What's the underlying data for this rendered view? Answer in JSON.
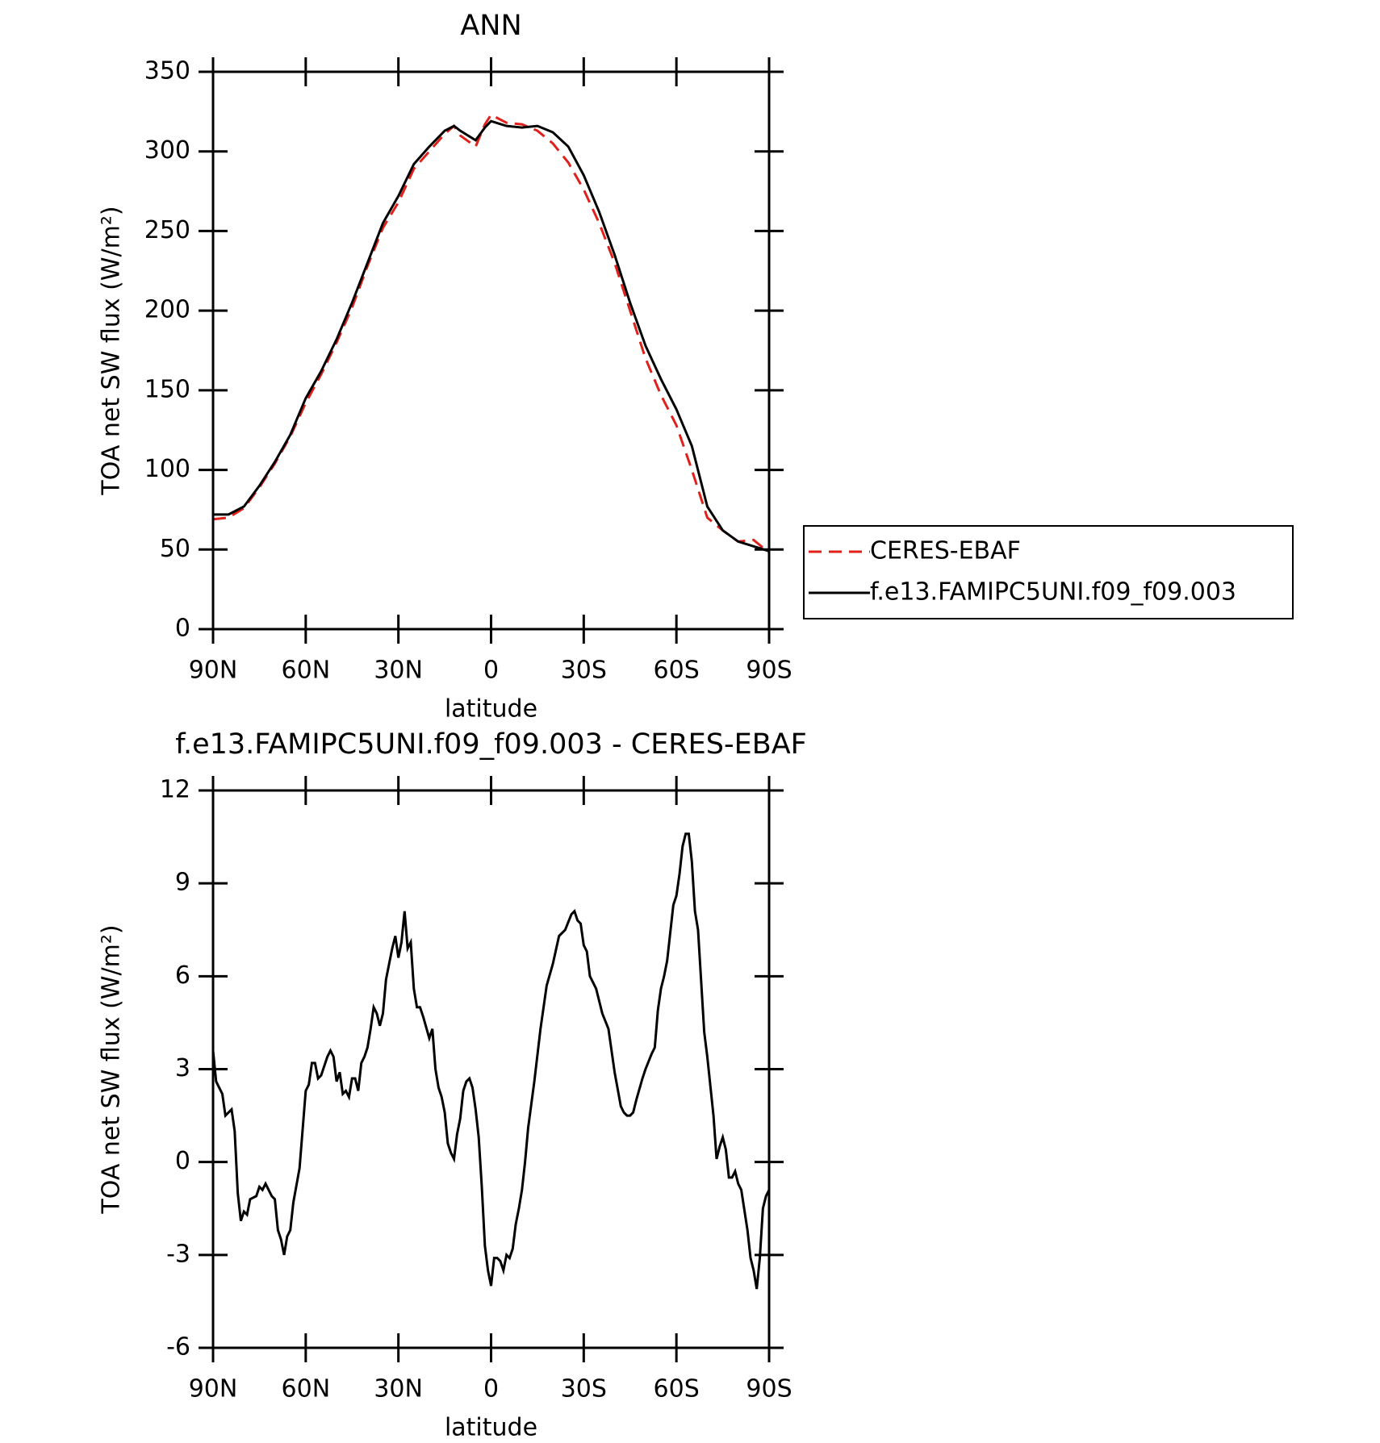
{
  "chart_data": [
    {
      "type": "line",
      "title": "ANN",
      "x_label": "latitude",
      "y_label": "TOA net SW flux (W/m²)",
      "x": [
        90,
        85,
        80,
        75,
        70,
        65,
        60,
        55,
        50,
        45,
        40,
        35,
        30,
        25,
        20,
        15,
        12,
        10,
        5,
        2,
        0,
        -5,
        -10,
        -15,
        -20,
        -25,
        -30,
        -35,
        -40,
        -45,
        -50,
        -55,
        -60,
        -65,
        -70,
        -75,
        -80,
        -85,
        -90
      ],
      "series": [
        {
          "name": "CERES-EBAF",
          "color": "#e0201b",
          "dash": true,
          "values": [
            69,
            70,
            76,
            89,
            104,
            121,
            142,
            160,
            180,
            202,
            228,
            252,
            268,
            289,
            300,
            311,
            316,
            310,
            303,
            317,
            323,
            318,
            317,
            313,
            305,
            293,
            276,
            255,
            230,
            200,
            170,
            147,
            128,
            100,
            70,
            62,
            55,
            56,
            48
          ]
        },
        {
          "name": "f.e13.FAMIPC5UNI.f09_f09.003",
          "color": "#000000",
          "dash": false,
          "values": [
            72,
            72,
            77,
            90,
            105,
            122,
            145,
            162,
            182,
            205,
            230,
            255,
            272,
            292,
            303,
            313,
            316,
            313,
            307,
            315,
            319,
            316,
            315,
            316,
            312,
            303,
            285,
            262,
            235,
            205,
            178,
            157,
            138,
            115,
            77,
            62,
            55,
            52,
            49
          ]
        }
      ],
      "xlim": [
        90,
        -90
      ],
      "xticks": [
        {
          "value": 90,
          "label": "90N"
        },
        {
          "value": 60,
          "label": "60N"
        },
        {
          "value": 30,
          "label": "30N"
        },
        0,
        {
          "value": -30,
          "label": "30S"
        },
        {
          "value": -60,
          "label": "60S"
        },
        {
          "value": -90,
          "label": "90S"
        }
      ],
      "ylim": [
        0,
        350
      ],
      "yticks": [
        0,
        50,
        100,
        150,
        200,
        250,
        300,
        350
      ],
      "legend": "right"
    },
    {
      "type": "line",
      "title": "f.e13.FAMIPC5UNI.f09_f09.003 - CERES-EBAF",
      "x_label": "latitude",
      "y_label": "TOA net SW flux (W/m²)",
      "x": [
        90,
        89,
        87,
        86,
        84,
        83,
        82,
        81,
        80,
        79,
        78,
        76,
        75,
        74,
        73,
        71,
        70,
        69,
        68,
        67,
        66,
        65,
        64,
        62,
        60,
        59,
        58,
        57,
        56,
        55,
        53,
        52,
        51,
        50,
        49,
        48,
        47,
        46,
        45,
        44,
        43,
        42,
        41,
        40,
        39,
        38,
        37,
        36,
        35,
        34,
        33,
        32,
        31,
        30,
        29,
        28,
        27,
        26,
        25,
        24,
        23,
        22,
        20,
        19,
        18,
        17,
        16,
        15,
        14,
        13,
        12,
        11,
        10,
        9,
        8,
        7,
        6,
        5,
        4,
        3,
        2,
        1,
        0,
        -1,
        -2,
        -3,
        -4,
        -5,
        -6,
        -7,
        -8,
        -9,
        -10,
        -11,
        -12,
        -14,
        -16,
        -18,
        -20,
        -22,
        -24,
        -26,
        -27,
        -28,
        -29,
        -30,
        -31,
        -32,
        -34,
        -36,
        -38,
        -40,
        -42,
        -43,
        -44,
        -45,
        -46,
        -47,
        -49,
        -50,
        -52,
        -53,
        -54,
        -55,
        -56,
        -57,
        -59,
        -60,
        -61,
        -62,
        -63,
        -64,
        -65,
        -66,
        -67,
        -69,
        -70,
        -72,
        -73,
        -74,
        -75,
        -76,
        -77,
        -78,
        -79,
        -80,
        -81,
        -83,
        -84,
        -85,
        -86,
        -87,
        -88,
        -89,
        -90
      ],
      "series": [
        {
          "color": "#000000",
          "dash": false,
          "values": [
            3.6,
            2.6,
            2.2,
            1.5,
            1.7,
            1.0,
            -1.0,
            -1.9,
            -1.6,
            -1.7,
            -1.2,
            -1.1,
            -0.8,
            -0.9,
            -0.7,
            -1.1,
            -1.2,
            -2.2,
            -2.5,
            -3.0,
            -2.4,
            -2.2,
            -1.3,
            -0.2,
            2.3,
            2.5,
            3.2,
            3.2,
            2.7,
            2.8,
            3.4,
            3.6,
            3.4,
            2.6,
            2.9,
            2.2,
            2.3,
            2.1,
            2.7,
            2.7,
            2.3,
            3.2,
            3.4,
            3.7,
            4.3,
            5.0,
            4.8,
            4.4,
            4.8,
            5.9,
            6.4,
            6.9,
            7.3,
            6.6,
            7.1,
            8.1,
            6.9,
            7.1,
            5.6,
            5.0,
            5.0,
            4.7,
            4.0,
            4.3,
            3.0,
            2.4,
            2.1,
            1.6,
            0.6,
            0.3,
            0.1,
            0.9,
            1.4,
            2.3,
            2.6,
            2.7,
            2.4,
            1.7,
            0.8,
            -0.8,
            -2.7,
            -3.5,
            -4.0,
            -3.1,
            -3.1,
            -3.2,
            -3.5,
            -3.0,
            -3.1,
            -2.8,
            -2.0,
            -1.5,
            -0.9,
            0.0,
            1.1,
            2.6,
            4.3,
            5.7,
            6.4,
            7.3,
            7.5,
            8.0,
            8.1,
            7.8,
            7.7,
            7.0,
            6.8,
            6.0,
            5.6,
            4.8,
            4.3,
            2.9,
            1.8,
            1.6,
            1.5,
            1.5,
            1.6,
            2.0,
            2.7,
            3.0,
            3.5,
            3.7,
            4.9,
            5.6,
            6.0,
            6.5,
            8.3,
            8.6,
            9.3,
            10.2,
            10.6,
            10.6,
            9.7,
            8.1,
            7.5,
            4.2,
            3.4,
            1.5,
            0.1,
            0.5,
            0.8,
            0.4,
            -0.5,
            -0.5,
            -0.3,
            -0.7,
            -0.9,
            -2.2,
            -3.1,
            -3.5,
            -4.1,
            -3.1,
            -1.5,
            -1.1,
            -0.9
          ]
        }
      ],
      "xlim": [
        90,
        -90
      ],
      "xticks": [
        {
          "value": 90,
          "label": "90N"
        },
        {
          "value": 60,
          "label": "60N"
        },
        {
          "value": 30,
          "label": "30N"
        },
        0,
        {
          "value": -30,
          "label": "30S"
        },
        {
          "value": -60,
          "label": "60S"
        },
        {
          "value": -90,
          "label": "90S"
        }
      ],
      "ylim": [
        -6,
        12
      ],
      "yticks": [
        -6,
        -3,
        0,
        3,
        6,
        9,
        12
      ]
    }
  ]
}
